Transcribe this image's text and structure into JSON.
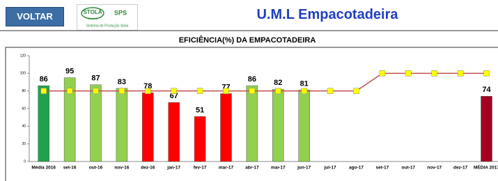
{
  "header": {
    "button": "VOLTAR",
    "logo_brand": "STOLA",
    "logo_country": "BRASIL",
    "logo_sps": "SPS",
    "logo_caption": "Sistema de Produção Stola",
    "title": "U.M.L Empacotadeira"
  },
  "chart_data": {
    "type": "bar",
    "title": "EFICIÊNCIA(%) DA EMPACOTADEIRA",
    "categories": [
      "Média 2016",
      "set-16",
      "out-16",
      "nov-16",
      "dez-16",
      "jan-17",
      "fev-17",
      "mar-17",
      "abr-17",
      "mai-17",
      "jun-17",
      "jul-17",
      "ago-17",
      "set-17",
      "out-17",
      "nov-17",
      "dez-17",
      "MÉDIA 2017"
    ],
    "series": [
      {
        "type": "bar",
        "values": [
          86,
          95,
          87,
          83,
          78,
          67,
          51,
          77,
          86,
          82,
          81,
          null,
          null,
          null,
          null,
          null,
          null,
          74
        ],
        "colors": [
          "#1fa24a",
          "#92d050",
          "#92d050",
          "#92d050",
          "#ff0000",
          "#ff0000",
          "#ff0000",
          "#ff0000",
          "#92d050",
          "#92d050",
          "#92d050",
          null,
          null,
          null,
          null,
          null,
          null,
          "#a50021"
        ]
      },
      {
        "type": "line",
        "values": [
          80,
          80,
          80,
          80,
          80,
          80,
          80,
          80,
          80,
          80,
          80,
          80,
          80,
          100,
          100,
          100,
          100,
          100
        ],
        "color": "#c0504d",
        "marker_color": "#ffff00"
      }
    ],
    "ylim": [
      0,
      120
    ],
    "yticks": [
      0,
      20,
      40,
      60,
      80,
      100,
      120
    ],
    "grid": false
  }
}
